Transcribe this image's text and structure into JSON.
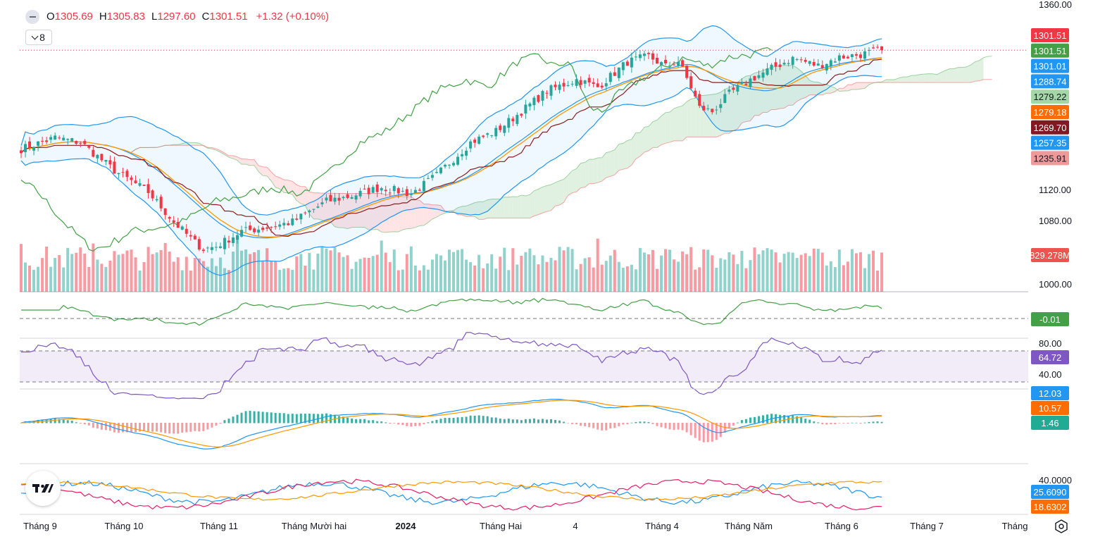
{
  "legend": {
    "o_label": "O",
    "o_value": "1305.69",
    "h_label": "H",
    "h_value": "1305.83",
    "l_label": "L",
    "l_value": "1297.60",
    "c_label": "C",
    "c_value": "1301.51",
    "change": "+1.32 (+0.10%)",
    "indicator_count": "8"
  },
  "colors": {
    "up": "#26a69a",
    "down": "#f23645",
    "bb": "#2196f3",
    "ma": "#ff9800",
    "kijun": "#8e1c1c",
    "lagging": "#43a047",
    "rsi": "#7e57c2",
    "rsi_band": "#ede7f6",
    "cloud_up": "#c8e6c9",
    "cloud_down": "#ffcdd2",
    "adx": "#ff9800",
    "di_plus": "#2196f3",
    "di_minus": "#e91e63"
  },
  "chart_data": {
    "type": "candlestick",
    "title": "",
    "price_axis_ticks": [
      "1360.00",
      "1120.00",
      "1080.00",
      "1000.00"
    ],
    "x_labels": [
      "Tháng 9",
      "Tháng 10",
      "Tháng 11",
      "Tháng Mười hai",
      "2024",
      "Tháng Hai",
      "4",
      "Tháng 4",
      "Tháng Năm",
      "Tháng 6",
      "Tháng 7",
      "Tháng"
    ],
    "close_anchors": [
      [
        "Tháng 9",
        1196
      ],
      [
        "Tháng 10",
        1173
      ],
      [
        "Tháng 11",
        1089
      ],
      [
        "Tháng Mười hai",
        1118
      ],
      [
        "2024",
        1155
      ],
      [
        "Tháng Hai",
        1203
      ],
      [
        "4",
        1258
      ],
      [
        "Tháng 4",
        1289
      ],
      [
        "Tháng Năm",
        1236
      ],
      [
        "Tháng 6",
        1293
      ],
      [
        "last",
        1301.51
      ]
    ],
    "last_ohlc": {
      "open": 1305.69,
      "high": 1305.83,
      "low": 1297.6,
      "close": 1301.51
    },
    "price_badges": [
      {
        "label": "1301.51",
        "color": "#f23645"
      },
      {
        "label": "1301.51",
        "color": "#43a047"
      },
      {
        "label": "1301.01",
        "color": "#2196f3"
      },
      {
        "label": "1288.74",
        "color": "#2196f3"
      },
      {
        "label": "1279.22",
        "color": "#a5d6a7",
        "text": "#131722"
      },
      {
        "label": "1279.18",
        "color": "#ff6d00"
      },
      {
        "label": "1269.70",
        "color": "#801922"
      },
      {
        "label": "1257.35",
        "color": "#2196f3"
      },
      {
        "label": "1235.91",
        "color": "#ef9a9a",
        "text": "#131722"
      }
    ],
    "volume_badge": "829.278M",
    "momentum": {
      "badge": "-0.01"
    },
    "rsi": {
      "ticks": [
        "80.00",
        "40.00"
      ],
      "upper": 70,
      "lower": 30,
      "badge": "64.72"
    },
    "macd": {
      "badges": [
        {
          "label": "12.03",
          "color": "#2196f3"
        },
        {
          "label": "10.57",
          "color": "#ff6d00"
        },
        {
          "label": "1.46",
          "color": "#22ab94"
        }
      ]
    },
    "adx": {
      "ticks": [
        "40.0000"
      ],
      "badges": [
        {
          "label": "25.6090",
          "color": "#2196f3"
        },
        {
          "label": "18.6302",
          "color": "#ff6d00"
        }
      ]
    }
  }
}
